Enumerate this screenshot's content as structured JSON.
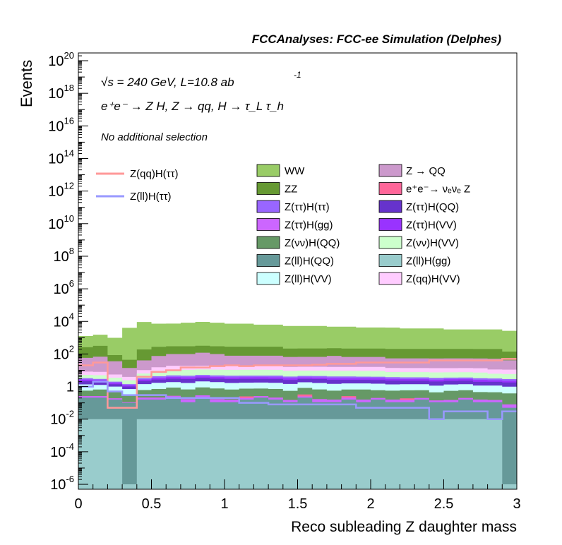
{
  "chart_data": {
    "type": "area",
    "title": "FCCAnalyses: FCC-ee Simulation (Delphes)",
    "xlabel": "Reco subleading Z daughter mass",
    "ylabel": "Events",
    "x_scale": "linear",
    "y_scale": "log",
    "xlim": [
      0,
      3
    ],
    "ylim": [
      5e-07,
      3e+20
    ],
    "x_ticks": [
      "0",
      "0.5",
      "1",
      "1.5",
      "2",
      "2.5",
      "3"
    ],
    "y_ticks": [
      {
        "base": "10",
        "exp": "-6",
        "value": 1e-06
      },
      {
        "base": "10",
        "exp": "-4",
        "value": 0.0001
      },
      {
        "base": "10",
        "exp": "-2",
        "value": 0.01
      },
      {
        "base": "1",
        "exp": "",
        "value": 1
      },
      {
        "base": "10",
        "exp": "2",
        "value": 100.0
      },
      {
        "base": "10",
        "exp": "4",
        "value": 10000.0
      },
      {
        "base": "10",
        "exp": "6",
        "value": 1000000.0
      },
      {
        "base": "10",
        "exp": "8",
        "value": 100000000.0
      },
      {
        "base": "10",
        "exp": "10",
        "value": 10000000000.0
      },
      {
        "base": "10",
        "exp": "12",
        "value": 1000000000000.0
      },
      {
        "base": "10",
        "exp": "14",
        "value": 100000000000000.0
      },
      {
        "base": "10",
        "exp": "16",
        "value": 1e+16
      },
      {
        "base": "10",
        "exp": "18",
        "value": 1e+18
      },
      {
        "base": "10",
        "exp": "20",
        "value": 1e+20
      }
    ],
    "bin_edges": [
      0,
      0.1,
      0.2,
      0.3,
      0.4,
      0.5,
      0.6,
      0.7,
      0.8,
      0.9,
      1.0,
      1.1,
      1.2,
      1.3,
      1.4,
      1.5,
      1.6,
      1.7,
      1.8,
      1.9,
      2.0,
      2.1,
      2.2,
      2.3,
      2.4,
      2.5,
      2.6,
      2.7,
      2.8,
      2.9,
      3.0
    ],
    "annotations": {
      "sqrt_s": "√s = 240 GeV, L=10.8 ab",
      "lumi_exp": "-1",
      "process": "e⁺e⁻ → Z H, Z → qq, H → τ_L τ_h",
      "selection": "No additional selection"
    },
    "legend_placement": "top",
    "stack": [
      {
        "name": "Z(ll)H(gg)",
        "color": "#99cccc",
        "values": [
          0.01,
          0.01,
          0.01,
          1e-06,
          0.01,
          0.01,
          0.01,
          0.01,
          0.01,
          0.01,
          0.01,
          0.01,
          0.01,
          0.01,
          0.01,
          0.01,
          0.01,
          0.01,
          0.01,
          0.01,
          0.01,
          0.01,
          0.01,
          0.01,
          0.01,
          0.01,
          0.01,
          0.01,
          0.01,
          1e-06
        ]
      },
      {
        "name": "Z(ll)H(QQ)",
        "color": "#669999",
        "values": [
          0.2,
          0.2,
          0.15,
          0.1,
          0.15,
          0.15,
          0.2,
          0.1,
          0.2,
          0.1,
          0.1,
          0.15,
          0.2,
          0.15,
          0.1,
          0.2,
          0.1,
          0.1,
          0.15,
          0.1,
          0.15,
          0.1,
          0.1,
          0.15,
          0.1,
          0.1,
          0.15,
          0.1,
          0.1,
          0.05
        ]
      },
      {
        "name": "Z(ττ)H(gg)",
        "color": "#cc66ff",
        "values": [
          0.05,
          0.05,
          0.03,
          0.01,
          0.05,
          0.05,
          0.06,
          0.06,
          0.08,
          0.06,
          0.05,
          0.04,
          0.05,
          0.05,
          0.04,
          0.04,
          0.06,
          0.05,
          0.05,
          0.05,
          0.04,
          0.05,
          0.04,
          0.04,
          0.03,
          0.04,
          0.04,
          0.05,
          0.04,
          0.03
        ]
      },
      {
        "name": "e⁺e⁻→ νₑνₑ Z",
        "color": "#ff6699",
        "values": [
          0,
          0,
          0,
          0,
          0,
          0,
          0,
          0,
          0,
          0,
          0,
          0.05,
          0,
          0,
          0,
          0.08,
          0,
          0,
          0.05,
          0,
          0,
          0,
          0.04,
          0,
          0,
          0,
          0,
          0,
          0,
          0
        ]
      },
      {
        "name": "Z(νν)H(QQ)",
        "color": "#669966",
        "values": [
          0.3,
          0.4,
          0.3,
          0.2,
          0.4,
          0.5,
          0.6,
          0.5,
          0.6,
          0.6,
          0.5,
          0.5,
          0.5,
          0.5,
          0.4,
          0.5,
          0.5,
          0.4,
          0.4,
          0.5,
          0.4,
          0.4,
          0.4,
          0.4,
          0.3,
          0.4,
          0.4,
          0.3,
          0.3,
          0.3
        ]
      },
      {
        "name": "Z(ll)H(VV)",
        "color": "#ccffff",
        "values": [
          0.8,
          0.6,
          0.5,
          0.4,
          0.8,
          1.0,
          1.0,
          1.0,
          1.2,
          1.1,
          1.0,
          1.0,
          1.0,
          1.0,
          0.9,
          1.0,
          1.0,
          0.9,
          0.9,
          0.9,
          0.9,
          0.8,
          0.8,
          0.8,
          0.7,
          0.8,
          0.8,
          0.7,
          0.7,
          0.6
        ]
      },
      {
        "name": "Z(ττ)H(QQ)",
        "color": "#6633cc",
        "values": [
          0.8,
          0.7,
          0.4,
          0.3,
          0.8,
          1.0,
          1.2,
          1.2,
          1.3,
          1.2,
          1.2,
          1.2,
          1.2,
          1.2,
          1.1,
          1.1,
          1.2,
          1.1,
          1.0,
          1.0,
          1.0,
          1.0,
          0.9,
          0.9,
          0.9,
          0.9,
          0.9,
          0.8,
          0.8,
          0.8
        ]
      },
      {
        "name": "Z(ττ)H(VV)",
        "color": "#9933ff",
        "values": [
          0.5,
          0.5,
          0.3,
          0.2,
          0.5,
          0.7,
          0.8,
          0.8,
          0.8,
          0.8,
          0.8,
          0.8,
          0.8,
          0.8,
          0.7,
          0.7,
          0.7,
          0.7,
          0.7,
          0.7,
          0.7,
          0.6,
          0.6,
          0.6,
          0.6,
          0.6,
          0.6,
          0.6,
          0.5,
          0.5
        ]
      },
      {
        "name": "Z(ττ)H(ττ)",
        "color": "#9966ff",
        "values": [
          0.6,
          0.5,
          0.3,
          0.2,
          0.6,
          0.9,
          1.0,
          1.0,
          1.0,
          1.0,
          1.0,
          1.0,
          1.0,
          1.0,
          0.9,
          0.9,
          0.9,
          0.9,
          0.9,
          0.8,
          0.8,
          0.8,
          0.8,
          0.8,
          0.8,
          0.7,
          0.7,
          0.7,
          0.7,
          0.6
        ]
      },
      {
        "name": "Z(νν)H(VV)",
        "color": "#ccffcc",
        "values": [
          2,
          2,
          1.5,
          1,
          3,
          5,
          6,
          6,
          6,
          6,
          6,
          6,
          6,
          6,
          5,
          5,
          5,
          5,
          5,
          5,
          5,
          4,
          4,
          4,
          4,
          4,
          4,
          4,
          3,
          3
        ]
      },
      {
        "name": "Z(qq)H(VV)",
        "color": "#ffccff",
        "values": [
          3,
          3,
          2,
          1.5,
          4,
          6,
          8,
          8,
          8,
          8,
          8,
          8,
          8,
          8,
          7,
          7,
          7,
          7,
          7,
          7,
          7,
          6,
          6,
          6,
          6,
          6,
          6,
          6,
          5,
          5
        ]
      },
      {
        "name": "Z → QQ",
        "color": "#cc99cc",
        "values": [
          50,
          60,
          30,
          10,
          30,
          60,
          80,
          80,
          100,
          80,
          60,
          60,
          60,
          60,
          50,
          50,
          50,
          60,
          50,
          50,
          50,
          40,
          40,
          40,
          40,
          40,
          40,
          40,
          40,
          30
        ]
      },
      {
        "name": "ZZ",
        "color": "#669933",
        "values": [
          200,
          250,
          50,
          30,
          150,
          200,
          200,
          200,
          200,
          200,
          200,
          200,
          200,
          200,
          150,
          150,
          150,
          150,
          150,
          150,
          150,
          150,
          150,
          150,
          150,
          150,
          150,
          150,
          150,
          100
        ]
      },
      {
        "name": "WW",
        "color": "#99cc66",
        "values": [
          1000,
          1200,
          900,
          4000,
          9000,
          7000,
          7000,
          8000,
          9000,
          8000,
          7000,
          7000,
          6000,
          6000,
          5000,
          5000,
          5000,
          4500,
          4500,
          4000,
          4000,
          4000,
          3500,
          3500,
          3500,
          3000,
          3000,
          3000,
          3000,
          2500
        ]
      }
    ],
    "lines": [
      {
        "name": "Z(qq)H(ττ)",
        "color": "#ff9999",
        "values": [
          20,
          30,
          0.05,
          0.05,
          4,
          8,
          10,
          15,
          15,
          18,
          20,
          18,
          20,
          20,
          20,
          20,
          22,
          25,
          25,
          30,
          30,
          30,
          30,
          30,
          40,
          40,
          40,
          40,
          40,
          50
        ]
      },
      {
        "name": "Z(ll)H(ττ)",
        "color": "#9999ff",
        "values": [
          1,
          2,
          0.5,
          0.3,
          0.3,
          0.3,
          0.2,
          0.2,
          0.2,
          0.2,
          0.2,
          0.1,
          0.1,
          0.08,
          0.08,
          0.08,
          0.08,
          0.08,
          0.08,
          0.05,
          0.05,
          0.05,
          0.05,
          0.05,
          0.01,
          0.03,
          0.03,
          0.03,
          0.01,
          0.03
        ]
      }
    ],
    "legend_left": [
      "Z(qq)H(ττ)",
      "Z(ll)H(ττ)"
    ],
    "legend_col1": [
      "WW",
      "ZZ",
      "Z(ττ)H(ττ)",
      "Z(ττ)H(gg)",
      "Z(νν)H(QQ)",
      "Z(ll)H(QQ)",
      "Z(ll)H(VV)"
    ],
    "legend_col2": [
      "Z → QQ",
      "e⁺e⁻→ νₑνₑ Z",
      "Z(ττ)H(QQ)",
      "Z(ττ)H(VV)",
      "Z(νν)H(VV)",
      "Z(ll)H(gg)",
      "Z(qq)H(VV)"
    ]
  }
}
